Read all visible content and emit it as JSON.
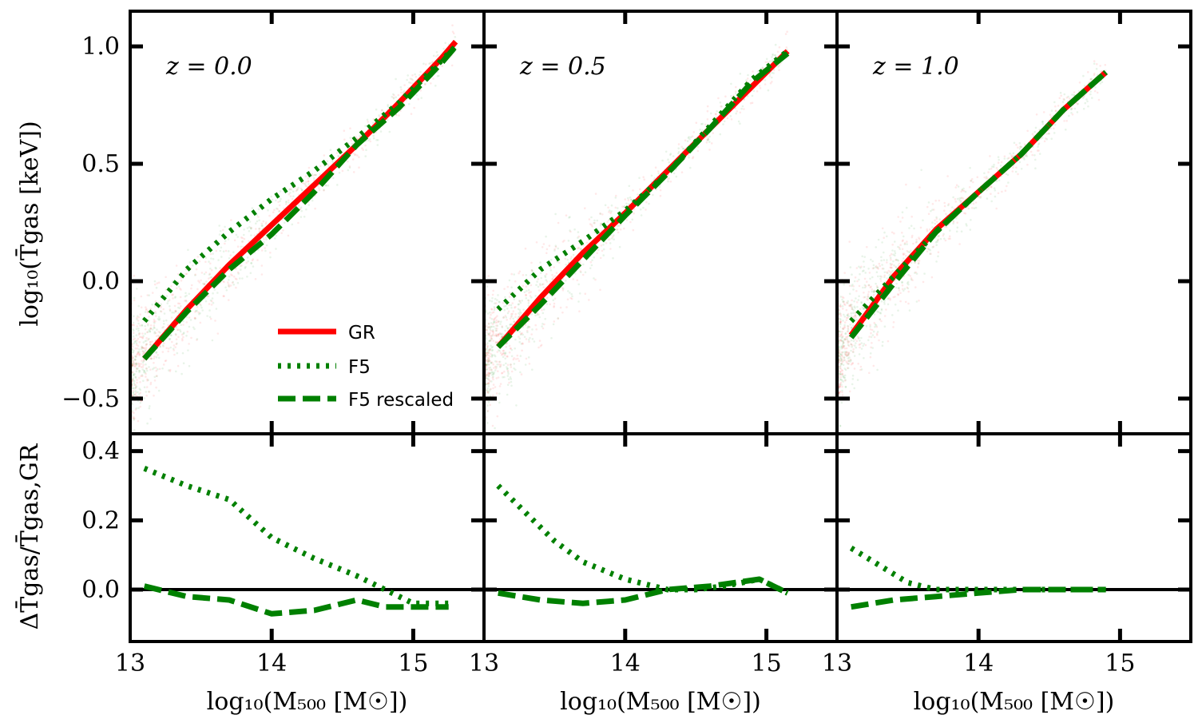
{
  "figure": {
    "ylabel_top": "log₁₀(T̄gas [keV])",
    "ylabel_bottom": "ΔT̄gas/T̄gas,GR",
    "xlabel": "log₁₀(M₅₀₀ [M☉])"
  },
  "legend": {
    "entries": [
      {
        "label": "GR",
        "color": "#ff0000",
        "style": "solid"
      },
      {
        "label": "F5",
        "color": "#008000",
        "style": "dotted"
      },
      {
        "label": "F5 rescaled",
        "color": "#008000",
        "style": "dashed"
      }
    ]
  },
  "chart_data": [
    {
      "type": "line",
      "panel": "top",
      "title": "z = 0.0",
      "xlim": [
        13,
        15.5
      ],
      "ylim": [
        -0.65,
        1.15
      ],
      "yticks": [
        -0.5,
        0.0,
        0.5,
        1.0
      ],
      "ytick_labels": [
        "−0.5",
        "0.0",
        "0.5",
        "1.0"
      ],
      "scatter_background": true,
      "series": [
        {
          "name": "GR",
          "color": "#ff0000",
          "style": "solid",
          "x": [
            13.1,
            13.4,
            13.7,
            14.0,
            14.3,
            14.6,
            14.9,
            15.2,
            15.3
          ],
          "y": [
            -0.33,
            -0.12,
            0.07,
            0.24,
            0.41,
            0.58,
            0.76,
            0.95,
            1.02
          ]
        },
        {
          "name": "F5",
          "color": "#008000",
          "style": "dotted",
          "x": [
            13.1,
            13.4,
            13.7,
            14.0,
            14.3,
            14.6,
            14.9,
            15.2,
            15.3
          ],
          "y": [
            -0.17,
            0.05,
            0.21,
            0.35,
            0.47,
            0.61,
            0.76,
            0.94,
            1.0
          ]
        },
        {
          "name": "F5 rescaled",
          "color": "#008000",
          "style": "dashed",
          "x": [
            13.1,
            13.4,
            13.7,
            14.0,
            14.3,
            14.6,
            14.9,
            15.2,
            15.3
          ],
          "y": [
            -0.33,
            -0.13,
            0.05,
            0.2,
            0.38,
            0.58,
            0.74,
            0.93,
            1.0
          ]
        }
      ]
    },
    {
      "type": "line",
      "panel": "top",
      "title": "z = 0.5",
      "xlim": [
        13,
        15.5
      ],
      "ylim": [
        -0.65,
        1.15
      ],
      "scatter_background": true,
      "series": [
        {
          "name": "GR",
          "color": "#ff0000",
          "style": "solid",
          "x": [
            13.1,
            13.4,
            13.7,
            14.0,
            14.3,
            14.6,
            14.9,
            15.15
          ],
          "y": [
            -0.28,
            -0.07,
            0.12,
            0.29,
            0.47,
            0.65,
            0.83,
            0.98
          ]
        },
        {
          "name": "F5",
          "color": "#008000",
          "style": "dotted",
          "x": [
            13.1,
            13.4,
            13.7,
            14.0,
            14.3,
            14.6,
            14.9,
            15.15
          ],
          "y": [
            -0.12,
            0.05,
            0.17,
            0.3,
            0.46,
            0.66,
            0.86,
            0.98
          ]
        },
        {
          "name": "F5 rescaled",
          "color": "#008000",
          "style": "dashed",
          "x": [
            13.1,
            13.4,
            13.7,
            14.0,
            14.3,
            14.6,
            14.9,
            15.15
          ],
          "y": [
            -0.28,
            -0.1,
            0.09,
            0.28,
            0.46,
            0.65,
            0.85,
            0.97
          ]
        }
      ]
    },
    {
      "type": "line",
      "panel": "top",
      "title": "z = 1.0",
      "xlim": [
        13,
        15.5
      ],
      "ylim": [
        -0.65,
        1.15
      ],
      "scatter_background": true,
      "series": [
        {
          "name": "GR",
          "color": "#ff0000",
          "style": "solid",
          "x": [
            13.1,
            13.4,
            13.7,
            14.0,
            14.3,
            14.6,
            14.9
          ],
          "y": [
            -0.23,
            0.02,
            0.22,
            0.38,
            0.54,
            0.73,
            0.89
          ]
        },
        {
          "name": "F5",
          "color": "#008000",
          "style": "dotted",
          "x": [
            13.1,
            13.4,
            13.7,
            14.0,
            14.3,
            14.6,
            14.9
          ],
          "y": [
            -0.17,
            0.02,
            0.21,
            0.38,
            0.54,
            0.73,
            0.89
          ]
        },
        {
          "name": "F5 rescaled",
          "color": "#008000",
          "style": "dashed",
          "x": [
            13.1,
            13.4,
            13.7,
            14.0,
            14.3,
            14.6,
            14.9
          ],
          "y": [
            -0.24,
            -0.01,
            0.21,
            0.38,
            0.54,
            0.73,
            0.89
          ]
        }
      ]
    },
    {
      "type": "line",
      "panel": "bottom",
      "xlim": [
        13,
        15.5
      ],
      "ylim": [
        -0.15,
        0.45
      ],
      "yticks": [
        0.0,
        0.2,
        0.4
      ],
      "ytick_labels": [
        "0.0",
        "0.2",
        "0.4"
      ],
      "xticks": [
        13,
        14,
        15
      ],
      "xtick_labels": [
        "13",
        "14",
        "15"
      ],
      "series": [
        {
          "name": "F5",
          "color": "#008000",
          "style": "dotted",
          "x": [
            13.1,
            13.4,
            13.7,
            14.0,
            14.3,
            14.6,
            14.8,
            15.0,
            15.25
          ],
          "y": [
            0.35,
            0.3,
            0.26,
            0.15,
            0.09,
            0.04,
            0.0,
            -0.04,
            -0.04
          ]
        },
        {
          "name": "F5 rescaled",
          "color": "#008000",
          "style": "dashed",
          "x": [
            13.1,
            13.4,
            13.7,
            14.0,
            14.3,
            14.6,
            14.8,
            15.0,
            15.25
          ],
          "y": [
            0.01,
            -0.02,
            -0.03,
            -0.07,
            -0.06,
            -0.03,
            -0.05,
            -0.05,
            -0.05
          ]
        }
      ]
    },
    {
      "type": "line",
      "panel": "bottom",
      "xlim": [
        13,
        15.5
      ],
      "ylim": [
        -0.15,
        0.45
      ],
      "xticks": [
        13,
        14,
        15
      ],
      "xtick_labels": [
        "13",
        "14",
        "15"
      ],
      "series": [
        {
          "name": "F5",
          "color": "#008000",
          "style": "dotted",
          "x": [
            13.1,
            13.3,
            13.5,
            13.7,
            14.0,
            14.3,
            14.5,
            14.7,
            14.95,
            15.15
          ],
          "y": [
            0.3,
            0.22,
            0.14,
            0.08,
            0.03,
            0.0,
            0.0,
            0.01,
            0.03,
            -0.01
          ]
        },
        {
          "name": "F5 rescaled",
          "color": "#008000",
          "style": "dashed",
          "x": [
            13.1,
            13.4,
            13.7,
            14.0,
            14.3,
            14.6,
            14.95,
            15.15
          ],
          "y": [
            -0.01,
            -0.03,
            -0.04,
            -0.03,
            0.0,
            0.01,
            0.03,
            -0.01
          ]
        }
      ]
    },
    {
      "type": "line",
      "panel": "bottom",
      "xlim": [
        13,
        15.5
      ],
      "ylim": [
        -0.15,
        0.45
      ],
      "xticks": [
        13,
        14,
        15
      ],
      "xtick_labels": [
        "13",
        "14",
        "15"
      ],
      "series": [
        {
          "name": "F5",
          "color": "#008000",
          "style": "dotted",
          "x": [
            13.1,
            13.3,
            13.5,
            13.7,
            14.0,
            14.3,
            14.6,
            14.9
          ],
          "y": [
            0.12,
            0.07,
            0.02,
            0.0,
            0.0,
            0.0,
            0.0,
            0.0
          ]
        },
        {
          "name": "F5 rescaled",
          "color": "#008000",
          "style": "dashed",
          "x": [
            13.1,
            13.4,
            13.7,
            14.0,
            14.3,
            14.6,
            14.9
          ],
          "y": [
            -0.05,
            -0.03,
            -0.02,
            -0.01,
            0.0,
            0.0,
            0.0
          ]
        }
      ]
    }
  ]
}
